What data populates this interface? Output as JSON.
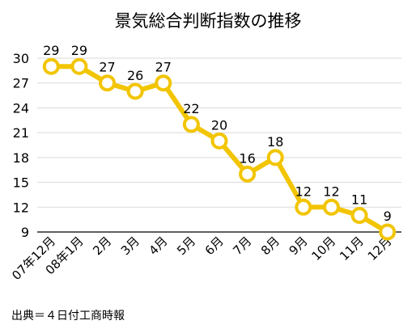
{
  "chart_data": {
    "type": "line",
    "title": "景気総合判断指数の推移",
    "categories": [
      "07年12月",
      "08年1月",
      "2月",
      "3月",
      "4月",
      "5月",
      "6月",
      "7月",
      "8月",
      "9月",
      "10月",
      "11月",
      "12月"
    ],
    "series": [
      {
        "values": [
          29,
          29,
          27,
          26,
          27,
          22,
          20,
          16,
          18,
          12,
          12,
          11,
          9
        ],
        "color": "#f2c500"
      }
    ],
    "ylim": [
      9,
      30
    ],
    "yticks": [
      9,
      12,
      15,
      18,
      21,
      24,
      27,
      30
    ],
    "grid": true,
    "legend": "none",
    "data_labels": true
  },
  "source": "出典＝４日付工商時報"
}
